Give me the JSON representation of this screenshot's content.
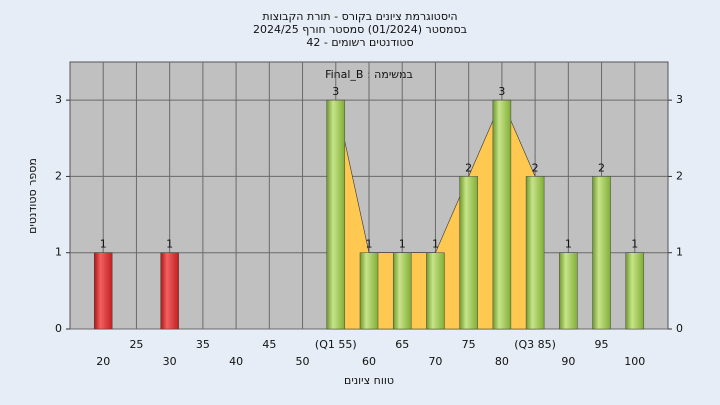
{
  "chart_data": {
    "type": "bar",
    "title_lines": [
      "היסטוגרמת ציונים בקורס - תורת הקבוצות",
      "בסמסטר  (01/2024)  סמסטר חורף 2024/25",
      "42 - סטודנטים רשומים"
    ],
    "annotation": "Final_B : במשימה",
    "x_label": "טווח ציונים",
    "y_label": "מספר סטודנטים",
    "x": [
      20,
      30,
      55,
      60,
      65,
      70,
      75,
      80,
      85,
      90,
      95,
      100
    ],
    "values": [
      1,
      1,
      3,
      1,
      1,
      1,
      2,
      3,
      2,
      1,
      2,
      1
    ],
    "bar_colors": [
      "red",
      "red",
      "green",
      "green",
      "green",
      "green",
      "green",
      "green",
      "green",
      "green",
      "green",
      "green"
    ],
    "xlim": [
      15,
      105
    ],
    "xticks": [
      20,
      25,
      30,
      35,
      40,
      45,
      50,
      {
        "value": 55,
        "label": "(Q1 55)"
      },
      60,
      65,
      70,
      75,
      80,
      {
        "value": 85,
        "label": "(Q3 85)"
      },
      90,
      95,
      100
    ],
    "ylim": [
      0,
      3.5
    ],
    "yticks": [
      0,
      1,
      2,
      3
    ],
    "grid": true
  }
}
